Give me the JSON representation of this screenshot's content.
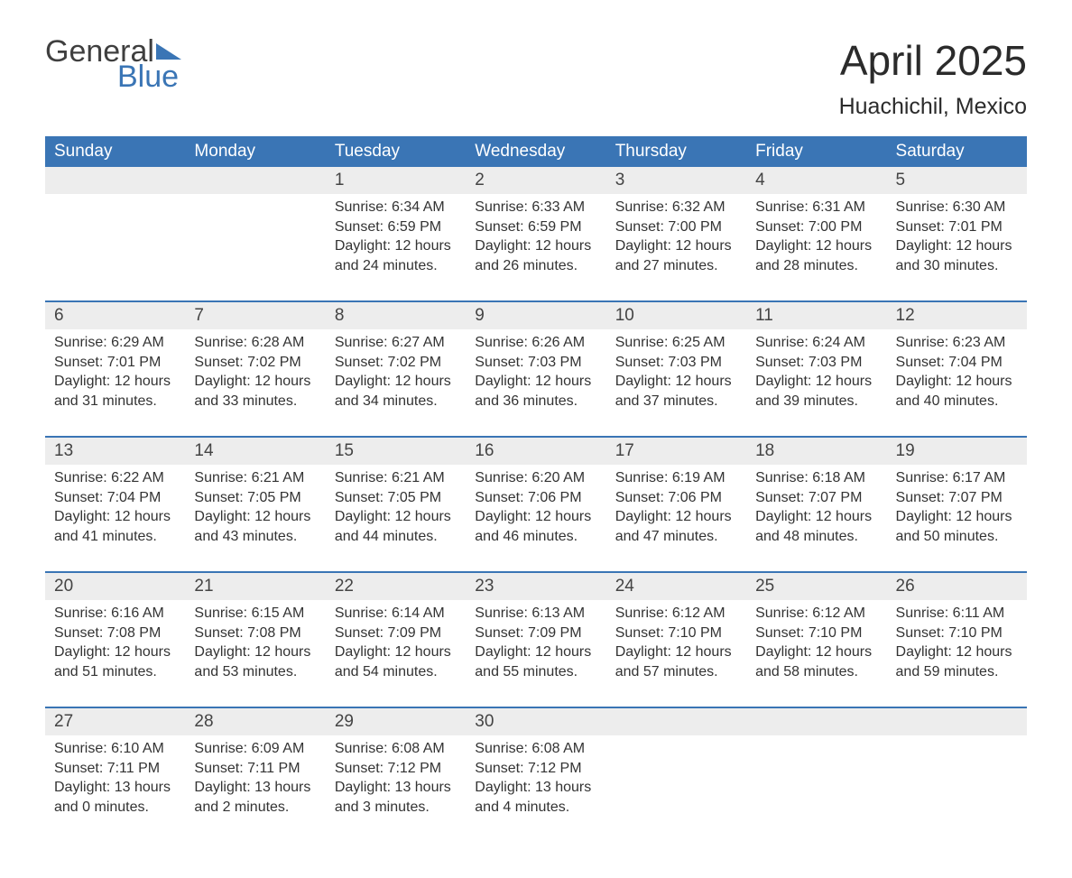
{
  "logo": {
    "word1": "General",
    "word2": "Blue"
  },
  "header": {
    "month_title": "April 2025",
    "location": "Huachichil, Mexico"
  },
  "colors": {
    "header_bg": "#3a75b5",
    "header_text": "#ffffff",
    "daynum_bg": "#ededed",
    "row_border": "#3a75b5",
    "body_text": "#333333",
    "page_bg": "#ffffff"
  },
  "fonts": {
    "month_title_pt": 46,
    "location_pt": 25,
    "weekday_header_pt": 19,
    "daynum_pt": 19,
    "body_pt": 16
  },
  "weekdays": [
    "Sunday",
    "Monday",
    "Tuesday",
    "Wednesday",
    "Thursday",
    "Friday",
    "Saturday"
  ],
  "weeks": [
    [
      null,
      null,
      {
        "d": "1",
        "sr": "6:34 AM",
        "ss": "6:59 PM",
        "dl": "12 hours and 24 minutes."
      },
      {
        "d": "2",
        "sr": "6:33 AM",
        "ss": "6:59 PM",
        "dl": "12 hours and 26 minutes."
      },
      {
        "d": "3",
        "sr": "6:32 AM",
        "ss": "7:00 PM",
        "dl": "12 hours and 27 minutes."
      },
      {
        "d": "4",
        "sr": "6:31 AM",
        "ss": "7:00 PM",
        "dl": "12 hours and 28 minutes."
      },
      {
        "d": "5",
        "sr": "6:30 AM",
        "ss": "7:01 PM",
        "dl": "12 hours and 30 minutes."
      }
    ],
    [
      {
        "d": "6",
        "sr": "6:29 AM",
        "ss": "7:01 PM",
        "dl": "12 hours and 31 minutes."
      },
      {
        "d": "7",
        "sr": "6:28 AM",
        "ss": "7:02 PM",
        "dl": "12 hours and 33 minutes."
      },
      {
        "d": "8",
        "sr": "6:27 AM",
        "ss": "7:02 PM",
        "dl": "12 hours and 34 minutes."
      },
      {
        "d": "9",
        "sr": "6:26 AM",
        "ss": "7:03 PM",
        "dl": "12 hours and 36 minutes."
      },
      {
        "d": "10",
        "sr": "6:25 AM",
        "ss": "7:03 PM",
        "dl": "12 hours and 37 minutes."
      },
      {
        "d": "11",
        "sr": "6:24 AM",
        "ss": "7:03 PM",
        "dl": "12 hours and 39 minutes."
      },
      {
        "d": "12",
        "sr": "6:23 AM",
        "ss": "7:04 PM",
        "dl": "12 hours and 40 minutes."
      }
    ],
    [
      {
        "d": "13",
        "sr": "6:22 AM",
        "ss": "7:04 PM",
        "dl": "12 hours and 41 minutes."
      },
      {
        "d": "14",
        "sr": "6:21 AM",
        "ss": "7:05 PM",
        "dl": "12 hours and 43 minutes."
      },
      {
        "d": "15",
        "sr": "6:21 AM",
        "ss": "7:05 PM",
        "dl": "12 hours and 44 minutes."
      },
      {
        "d": "16",
        "sr": "6:20 AM",
        "ss": "7:06 PM",
        "dl": "12 hours and 46 minutes."
      },
      {
        "d": "17",
        "sr": "6:19 AM",
        "ss": "7:06 PM",
        "dl": "12 hours and 47 minutes."
      },
      {
        "d": "18",
        "sr": "6:18 AM",
        "ss": "7:07 PM",
        "dl": "12 hours and 48 minutes."
      },
      {
        "d": "19",
        "sr": "6:17 AM",
        "ss": "7:07 PM",
        "dl": "12 hours and 50 minutes."
      }
    ],
    [
      {
        "d": "20",
        "sr": "6:16 AM",
        "ss": "7:08 PM",
        "dl": "12 hours and 51 minutes."
      },
      {
        "d": "21",
        "sr": "6:15 AM",
        "ss": "7:08 PM",
        "dl": "12 hours and 53 minutes."
      },
      {
        "d": "22",
        "sr": "6:14 AM",
        "ss": "7:09 PM",
        "dl": "12 hours and 54 minutes."
      },
      {
        "d": "23",
        "sr": "6:13 AM",
        "ss": "7:09 PM",
        "dl": "12 hours and 55 minutes."
      },
      {
        "d": "24",
        "sr": "6:12 AM",
        "ss": "7:10 PM",
        "dl": "12 hours and 57 minutes."
      },
      {
        "d": "25",
        "sr": "6:12 AM",
        "ss": "7:10 PM",
        "dl": "12 hours and 58 minutes."
      },
      {
        "d": "26",
        "sr": "6:11 AM",
        "ss": "7:10 PM",
        "dl": "12 hours and 59 minutes."
      }
    ],
    [
      {
        "d": "27",
        "sr": "6:10 AM",
        "ss": "7:11 PM",
        "dl": "13 hours and 0 minutes."
      },
      {
        "d": "28",
        "sr": "6:09 AM",
        "ss": "7:11 PM",
        "dl": "13 hours and 2 minutes."
      },
      {
        "d": "29",
        "sr": "6:08 AM",
        "ss": "7:12 PM",
        "dl": "13 hours and 3 minutes."
      },
      {
        "d": "30",
        "sr": "6:08 AM",
        "ss": "7:12 PM",
        "dl": "13 hours and 4 minutes."
      },
      null,
      null,
      null
    ]
  ],
  "labels": {
    "sunrise": "Sunrise: ",
    "sunset": "Sunset: ",
    "daylight": "Daylight: "
  }
}
